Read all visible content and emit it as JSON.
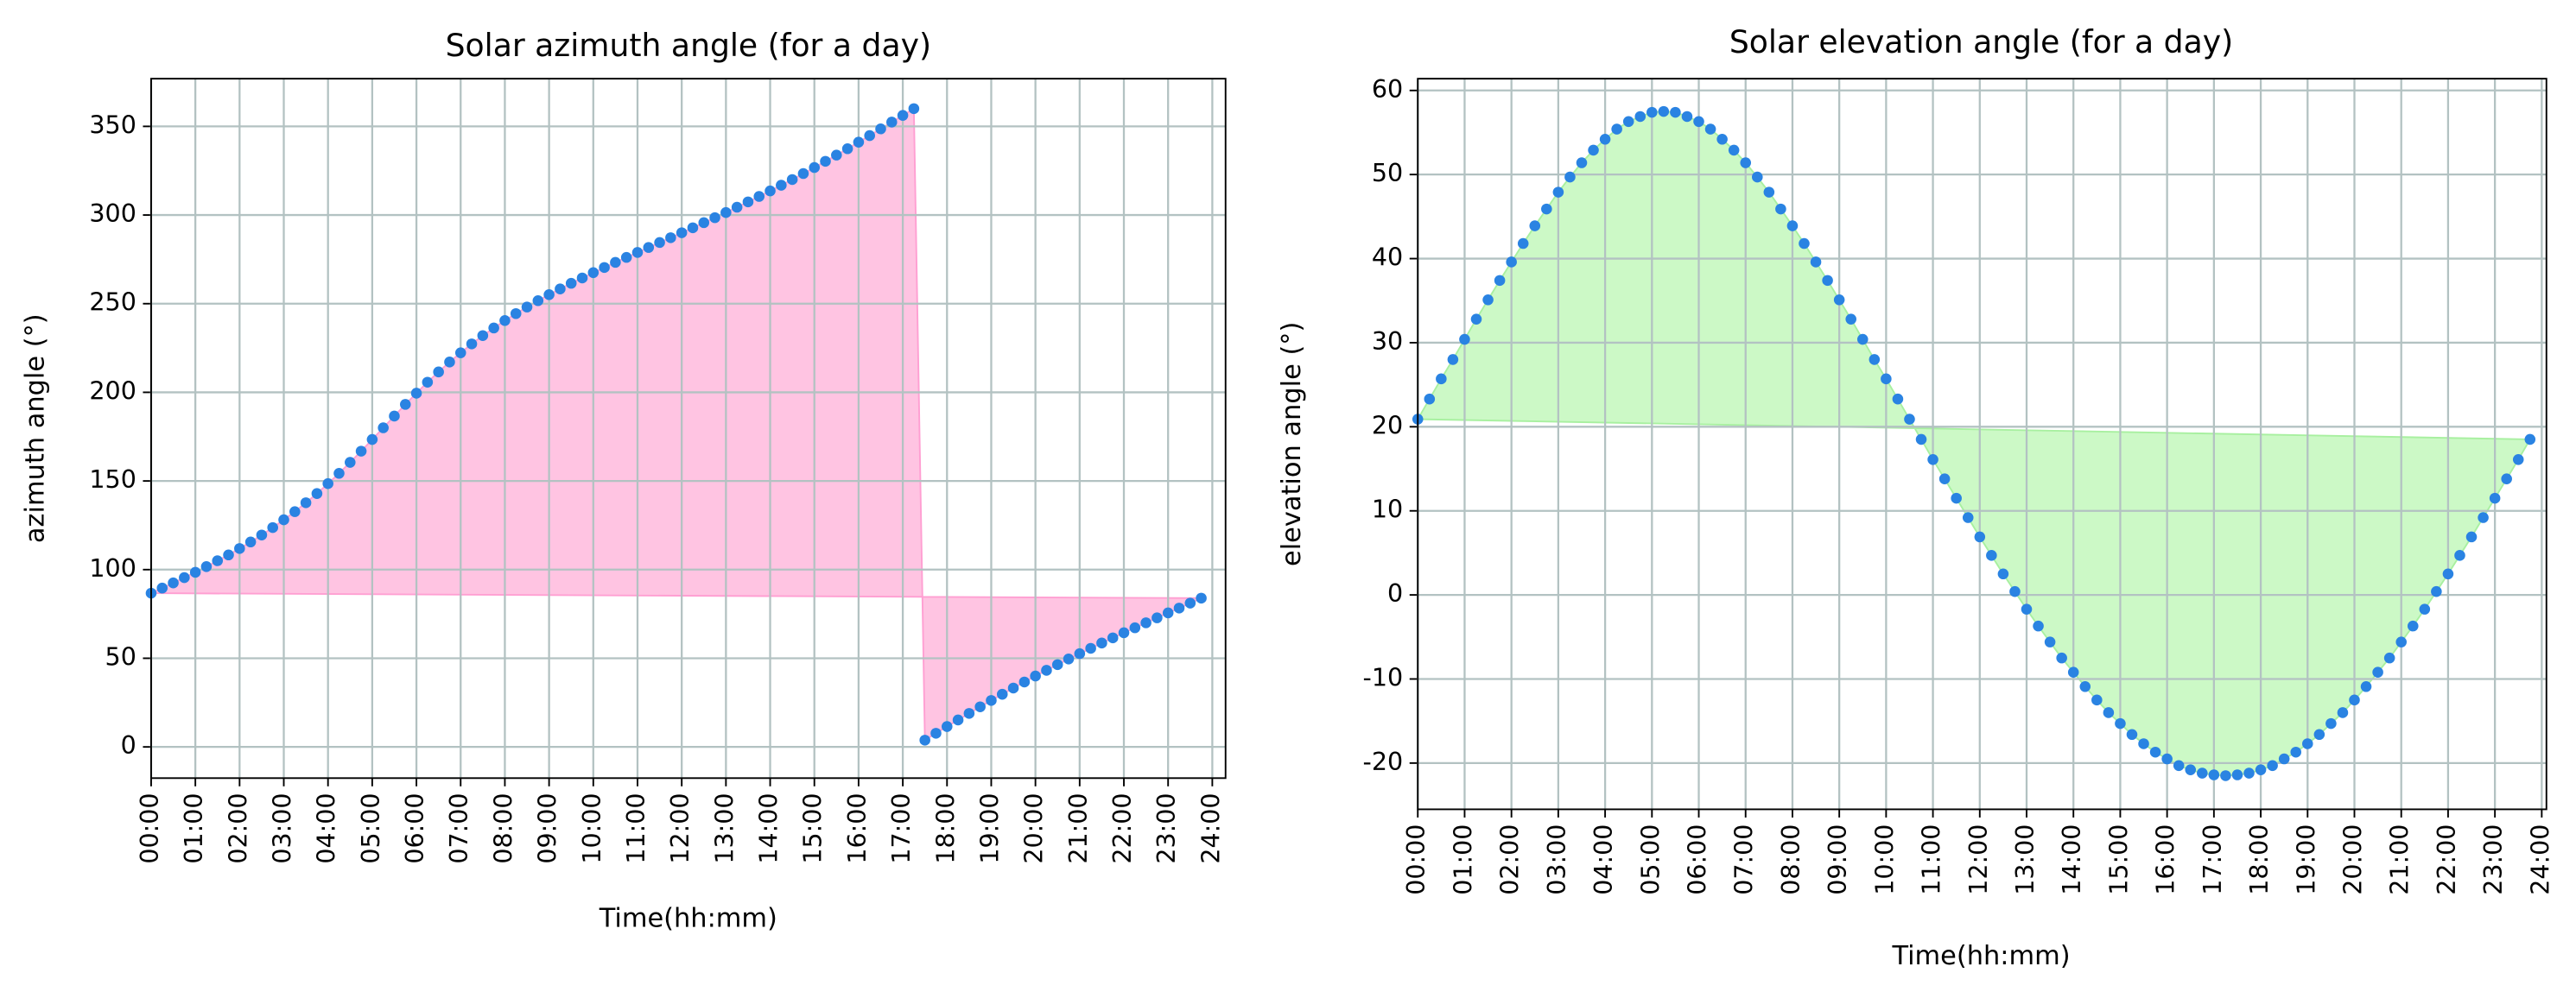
{
  "chart_data": [
    {
      "type": "area",
      "title": "Solar azimuth angle (for a day)",
      "xlabel": "Time(hh:mm)",
      "ylabel": "azimuth angle (°)",
      "x": [
        0,
        0.25,
        0.5,
        0.75,
        1,
        1.25,
        1.5,
        1.75,
        2,
        2.25,
        2.5,
        2.75,
        3,
        3.25,
        3.5,
        3.75,
        4,
        4.25,
        4.5,
        4.75,
        5,
        5.25,
        5.5,
        5.75,
        6,
        6.25,
        6.5,
        6.75,
        7,
        7.25,
        7.5,
        7.75,
        8,
        8.25,
        8.5,
        8.75,
        9,
        9.25,
        9.5,
        9.75,
        10,
        10.25,
        10.5,
        10.75,
        11,
        11.25,
        11.5,
        11.75,
        12,
        12.25,
        12.5,
        12.75,
        13,
        13.25,
        13.5,
        13.75,
        14,
        14.25,
        14.5,
        14.75,
        15,
        15.25,
        15.5,
        15.75,
        16,
        16.25,
        16.5,
        16.75,
        17,
        17.25,
        17.5,
        17.75,
        18,
        18.25,
        18.5,
        18.75,
        19,
        19.25,
        19.5,
        19.75,
        20,
        20.25,
        20.5,
        20.75,
        21,
        21.25,
        21.5,
        21.75,
        22,
        22.25,
        22.5,
        22.75,
        23,
        23.25,
        23.5,
        23.75
      ],
      "values": [
        86.7,
        89.6,
        92.5,
        95.5,
        98.5,
        101.7,
        105.0,
        108.3,
        111.9,
        115.6,
        119.5,
        123.7,
        128.1,
        132.7,
        137.7,
        142.9,
        148.5,
        154.3,
        160.5,
        166.8,
        173.4,
        180.0,
        186.6,
        193.2,
        199.5,
        205.7,
        211.5,
        217.1,
        222.3,
        227.3,
        232.0,
        236.3,
        240.5,
        244.4,
        248.1,
        251.7,
        255.1,
        258.3,
        261.5,
        264.5,
        267.5,
        270.4,
        273.3,
        276.1,
        278.9,
        281.7,
        284.5,
        287.2,
        290.0,
        292.8,
        295.7,
        298.5,
        301.4,
        304.4,
        307.4,
        310.5,
        313.6,
        316.8,
        320.0,
        323.4,
        326.8,
        330.3,
        333.8,
        337.4,
        341.1,
        344.8,
        348.6,
        352.4,
        356.2,
        360.0,
        3.8,
        7.7,
        11.5,
        15.2,
        18.9,
        22.6,
        26.2,
        29.7,
        33.2,
        36.6,
        40.0,
        43.2,
        46.4,
        49.6,
        52.6,
        55.6,
        58.6,
        61.5,
        64.4,
        67.2,
        70.0,
        72.8,
        75.6,
        78.3,
        81.1,
        83.9
      ],
      "color": "#2a83e2",
      "fill_color": "#ffc4e2",
      "edge_color": "#ff9fd2",
      "xlim": [
        0,
        24.3
      ],
      "ylim": [
        -17.6,
        376.9
      ],
      "xticks": [
        {
          "value": 0,
          "label": "00:00"
        },
        {
          "value": 1,
          "label": "01:00"
        },
        {
          "value": 2,
          "label": "02:00"
        },
        {
          "value": 3,
          "label": "03:00"
        },
        {
          "value": 4,
          "label": "04:00"
        },
        {
          "value": 5,
          "label": "05:00"
        },
        {
          "value": 6,
          "label": "06:00"
        },
        {
          "value": 7,
          "label": "07:00"
        },
        {
          "value": 8,
          "label": "08:00"
        },
        {
          "value": 9,
          "label": "09:00"
        },
        {
          "value": 10,
          "label": "10:00"
        },
        {
          "value": 11,
          "label": "11:00"
        },
        {
          "value": 12,
          "label": "12:00"
        },
        {
          "value": 13,
          "label": "13:00"
        },
        {
          "value": 14,
          "label": "14:00"
        },
        {
          "value": 15,
          "label": "15:00"
        },
        {
          "value": 16,
          "label": "16:00"
        },
        {
          "value": 17,
          "label": "17:00"
        },
        {
          "value": 18,
          "label": "18:00"
        },
        {
          "value": 19,
          "label": "19:00"
        },
        {
          "value": 20,
          "label": "20:00"
        },
        {
          "value": 21,
          "label": "21:00"
        },
        {
          "value": 22,
          "label": "22:00"
        },
        {
          "value": 23,
          "label": "23:00"
        },
        {
          "value": 24,
          "label": "24:00"
        }
      ],
      "yticks": [
        0,
        50,
        100,
        150,
        200,
        250,
        300,
        350
      ],
      "grid": true
    },
    {
      "type": "area",
      "title": "Solar elevation angle (for a day)",
      "xlabel": "Time(hh:mm)",
      "ylabel": "elevation angle (°)",
      "x": [
        0,
        0.25,
        0.5,
        0.75,
        1,
        1.25,
        1.5,
        1.75,
        2,
        2.25,
        2.5,
        2.75,
        3,
        3.25,
        3.5,
        3.75,
        4,
        4.25,
        4.5,
        4.75,
        5,
        5.25,
        5.5,
        5.75,
        6,
        6.25,
        6.5,
        6.75,
        7,
        7.25,
        7.5,
        7.75,
        8,
        8.25,
        8.5,
        8.75,
        9,
        9.25,
        9.5,
        9.75,
        10,
        10.25,
        10.5,
        10.75,
        11,
        11.25,
        11.5,
        11.75,
        12,
        12.25,
        12.5,
        12.75,
        13,
        13.25,
        13.5,
        13.75,
        14,
        14.25,
        14.5,
        14.75,
        15,
        15.25,
        15.5,
        15.75,
        16,
        16.25,
        16.5,
        16.75,
        17,
        17.25,
        17.5,
        17.75,
        18,
        18.25,
        18.5,
        18.75,
        19,
        19.25,
        19.5,
        19.75,
        20,
        20.25,
        20.5,
        20.75,
        21,
        21.25,
        21.5,
        21.75,
        22,
        22.25,
        22.5,
        22.75,
        23,
        23.25,
        23.5,
        23.75
      ],
      "values": [
        20.9,
        23.3,
        25.7,
        28.0,
        30.4,
        32.8,
        35.1,
        37.4,
        39.6,
        41.8,
        43.9,
        45.9,
        47.9,
        49.7,
        51.4,
        52.9,
        54.2,
        55.4,
        56.3,
        56.9,
        57.4,
        57.5,
        57.4,
        56.9,
        56.3,
        55.4,
        54.2,
        52.9,
        51.4,
        49.7,
        47.9,
        45.9,
        43.9,
        41.8,
        39.6,
        37.4,
        35.1,
        32.8,
        30.4,
        28.0,
        25.7,
        23.3,
        20.9,
        18.5,
        16.1,
        13.8,
        11.5,
        9.2,
        6.9,
        4.7,
        2.5,
        0.4,
        -1.7,
        -3.7,
        -5.6,
        -7.5,
        -9.2,
        -10.9,
        -12.5,
        -14.0,
        -15.3,
        -16.6,
        -17.7,
        -18.7,
        -19.5,
        -20.3,
        -20.8,
        -21.2,
        -21.4,
        -21.5,
        -21.4,
        -21.2,
        -20.8,
        -20.3,
        -19.5,
        -18.7,
        -17.7,
        -16.6,
        -15.3,
        -14.0,
        -12.5,
        -10.9,
        -9.2,
        -7.5,
        -5.6,
        -3.7,
        -1.7,
        0.4,
        2.5,
        4.7,
        6.9,
        9.2,
        11.5,
        13.8,
        16.1,
        18.5
      ],
      "color": "#2a83e2",
      "fill_color": "#ccf9c6",
      "edge_color": "#a8f0a0",
      "xlim": [
        0,
        24.1
      ],
      "ylim": [
        -25.5,
        61.4
      ],
      "xticks": [
        {
          "value": 0,
          "label": "00:00"
        },
        {
          "value": 1,
          "label": "01:00"
        },
        {
          "value": 2,
          "label": "02:00"
        },
        {
          "value": 3,
          "label": "03:00"
        },
        {
          "value": 4,
          "label": "04:00"
        },
        {
          "value": 5,
          "label": "05:00"
        },
        {
          "value": 6,
          "label": "06:00"
        },
        {
          "value": 7,
          "label": "07:00"
        },
        {
          "value": 8,
          "label": "08:00"
        },
        {
          "value": 9,
          "label": "09:00"
        },
        {
          "value": 10,
          "label": "10:00"
        },
        {
          "value": 11,
          "label": "11:00"
        },
        {
          "value": 12,
          "label": "12:00"
        },
        {
          "value": 13,
          "label": "13:00"
        },
        {
          "value": 14,
          "label": "14:00"
        },
        {
          "value": 15,
          "label": "15:00"
        },
        {
          "value": 16,
          "label": "16:00"
        },
        {
          "value": 17,
          "label": "17:00"
        },
        {
          "value": 18,
          "label": "18:00"
        },
        {
          "value": 19,
          "label": "19:00"
        },
        {
          "value": 20,
          "label": "20:00"
        },
        {
          "value": 21,
          "label": "21:00"
        },
        {
          "value": 22,
          "label": "22:00"
        },
        {
          "value": 23,
          "label": "23:00"
        },
        {
          "value": 24,
          "label": "24:00"
        }
      ],
      "yticks": [
        -20,
        -10,
        0,
        10,
        20,
        30,
        40,
        50,
        60
      ],
      "grid": true
    }
  ]
}
